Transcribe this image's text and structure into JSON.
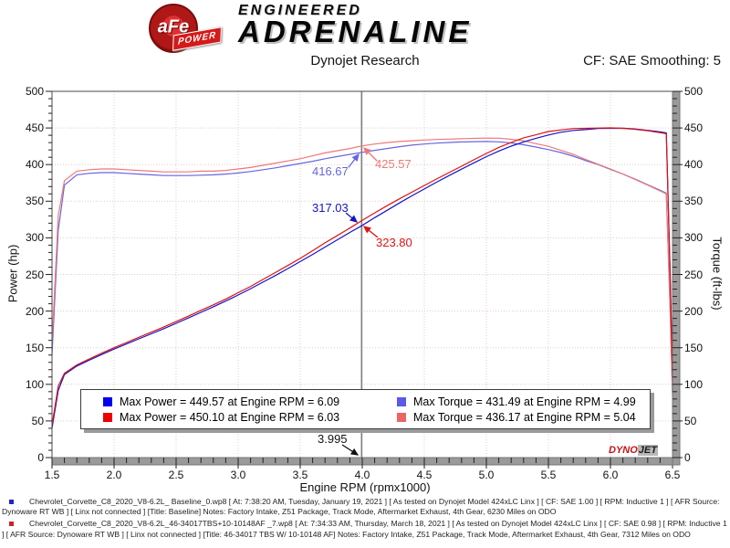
{
  "header": {
    "logo_circle": "aFe",
    "logo_banner": "POWER",
    "brand_line1": "ENGINEERED",
    "brand_line2": "ADRENALINE",
    "title": "Dynojet Research",
    "cf_label": "CF: SAE Smoothing: 5"
  },
  "colors": {
    "power_baseline": "#1414c8",
    "power_new": "#dd1212",
    "torque_baseline": "#6666e0",
    "torque_new": "#ee7878",
    "legend_power_baseline": "#0000ee",
    "legend_power_new": "#ee0000",
    "legend_torque_baseline": "#5a5ae6",
    "legend_torque_new": "#ee6464",
    "grid": "#e6caca",
    "cursor": "#808080",
    "axis_bar": "#9a9a9a",
    "plot_border": "#4a4a4a"
  },
  "chart_data": {
    "type": "line",
    "title": "Dynojet Research",
    "xlabel": "Engine RPM (rpmx1000)",
    "ylabel_left": "Power (hp)",
    "ylabel_right": "Torque (ft-lbs)",
    "xlim": [
      1.5,
      6.5
    ],
    "ylim_left": [
      0,
      500
    ],
    "ylim_right": [
      0,
      500
    ],
    "grid": true,
    "x_major_ticks": [
      1.5,
      2.0,
      2.5,
      3.0,
      3.5,
      4.0,
      4.5,
      5.0,
      5.5,
      6.0,
      6.5
    ],
    "y_major_ticks": [
      0,
      50,
      100,
      150,
      200,
      250,
      300,
      350,
      400,
      450,
      500
    ],
    "cursor_rpm": 3.995,
    "x": [
      1.5,
      1.55,
      1.6,
      1.7,
      1.8,
      1.9,
      2.0,
      2.1,
      2.2,
      2.3,
      2.4,
      2.5,
      2.6,
      2.7,
      2.8,
      2.9,
      3.0,
      3.1,
      3.2,
      3.3,
      3.4,
      3.5,
      3.6,
      3.7,
      3.8,
      3.9,
      4.0,
      4.1,
      4.2,
      4.3,
      4.4,
      4.5,
      4.6,
      4.7,
      4.8,
      4.9,
      5.0,
      5.1,
      5.2,
      5.3,
      5.4,
      5.5,
      5.6,
      5.7,
      5.8,
      5.9,
      6.0,
      6.1,
      6.2,
      6.3,
      6.4,
      6.45,
      6.48,
      6.5
    ],
    "series": [
      {
        "key": "torque_baseline",
        "name": "Torque Baseline",
        "axis": "right",
        "values": [
          140,
          310,
          372,
          386,
          388,
          389,
          389,
          388,
          387,
          386,
          385,
          385,
          385,
          385.5,
          386,
          387,
          388.5,
          390.5,
          393,
          395.5,
          398.5,
          401.5,
          404.5,
          408,
          411,
          414,
          416.7,
          419.5,
          422,
          424.5,
          426.5,
          428,
          429.3,
          430.2,
          430.9,
          431.3,
          431.5,
          431,
          429.5,
          427,
          424,
          420.5,
          416.5,
          411.5,
          405.5,
          400,
          393.5,
          387,
          380,
          372.5,
          365,
          361,
          210,
          90
        ]
      },
      {
        "key": "torque_new",
        "name": "Torque 46-34017 TBS W/ 10-10148 AF",
        "axis": "right",
        "values": [
          155,
          330,
          378,
          391,
          393,
          394,
          394,
          393,
          392,
          391,
          390,
          390,
          390,
          391,
          391,
          392,
          394,
          396,
          399,
          402,
          405,
          408,
          412,
          416,
          419,
          422,
          425.6,
          428,
          430,
          431.5,
          432.5,
          433.5,
          434.3,
          434.8,
          435.3,
          435.8,
          436.1,
          436,
          434.5,
          432.5,
          428.5,
          425,
          419.5,
          414,
          407,
          400.5,
          394,
          387,
          379.5,
          372,
          364,
          360,
          205,
          85
        ]
      },
      {
        "key": "power_baseline",
        "name": "Power Baseline",
        "axis": "left",
        "values": [
          40.0,
          91.5,
          113.3,
          124.9,
          133.0,
          140.7,
          148.1,
          155.1,
          162.1,
          169.0,
          175.9,
          183.3,
          190.6,
          198.2,
          205.8,
          213.7,
          221.9,
          230.5,
          239.5,
          248.5,
          258.0,
          267.6,
          277.3,
          287.4,
          297.4,
          307.4,
          317.0,
          327.5,
          337.5,
          347.6,
          357.3,
          366.7,
          376.0,
          385.0,
          393.8,
          402.4,
          410.8,
          418.5,
          425.2,
          430.9,
          435.9,
          440.4,
          444.1,
          446.6,
          447.8,
          449.4,
          449.5,
          449.6,
          448.6,
          446.8,
          444.8,
          443.3,
          259.1,
          111.4
        ]
      },
      {
        "key": "power_new",
        "name": "Power 46-34017 TBS W/ 10-10148 AF",
        "axis": "left",
        "values": [
          44.3,
          97.4,
          115.2,
          126.6,
          134.7,
          142.5,
          150.0,
          157.1,
          164.2,
          171.2,
          178.2,
          185.6,
          193.1,
          201.0,
          208.5,
          216.5,
          225.1,
          233.7,
          243.1,
          252.6,
          262.2,
          271.9,
          282.4,
          293.1,
          303.2,
          313.4,
          323.8,
          334.1,
          343.9,
          353.3,
          362.3,
          371.4,
          380.4,
          389.1,
          397.8,
          406.6,
          415.2,
          423.4,
          430.2,
          436.5,
          440.6,
          445.1,
          447.3,
          449.3,
          449.5,
          449.9,
          450.1,
          449.5,
          448.0,
          446.2,
          443.5,
          442.1,
          252.9,
          105.2
        ]
      }
    ],
    "legend_position": "bottom-inside"
  },
  "legend": {
    "entries": [
      {
        "key": "power_baseline",
        "swatch": "legend_power_baseline",
        "label": "Max Power = 449.57 at Engine RPM = 6.09"
      },
      {
        "key": "torque_baseline",
        "swatch": "legend_torque_baseline",
        "label": "Max Torque = 431.49 at Engine RPM = 4.99"
      },
      {
        "key": "power_new",
        "swatch": "legend_power_new",
        "label": "Max Power = 450.10 at Engine RPM = 6.03"
      },
      {
        "key": "torque_new",
        "swatch": "legend_torque_new",
        "label": "Max Torque = 436.17 at Engine RPM = 5.04"
      }
    ]
  },
  "annotations": [
    {
      "id": "torque-baseline-value",
      "text": "416.67",
      "color_key": "torque_baseline"
    },
    {
      "id": "torque-new-value",
      "text": "425.57",
      "color_key": "torque_new"
    },
    {
      "id": "power-baseline-value",
      "text": "317.03",
      "color_key": "power_baseline"
    },
    {
      "id": "power-new-value",
      "text": "323.80",
      "color_key": "power_new"
    },
    {
      "id": "cursor-rpm-value",
      "text": "3.995",
      "color_key": "cursor_text"
    }
  ],
  "watermark": {
    "part1": "DYNO",
    "part2": "JET"
  },
  "footnotes": [
    {
      "bullet_color": "#2424cc",
      "text": "Chevrolet_Corvette_C8_2020_V8-6.2L_ Baseline_0.wp8 [ At: 7:38:20 AM, Tuesday, January 19, 2021 ] [ As tested on Dynojet Model 424xLC Linx ] [ CF: SAE 1.00 ] [ RPM: Inductive 1 ] [ AFR Source: Dynoware RT WB ] [ Linx not connected ] [Title: Baseline]  Notes: Factory Intake, Z51 Package, Track Mode, Aftermarket Exhaust, 4th Gear, 6230 Miles on ODO"
    },
    {
      "bullet_color": "#cc2424",
      "text": "Chevrolet_Corvette_C8_2020_V8-6.2L_46-34017TBS+10-10148AF _7.wp8 [ At: 7:34:33 AM, Thursday, March 18, 2021 ] [ As tested on Dynojet Model 424xLC Linx ] [ CF: SAE 0.98 ] [ RPM: Inductive 1 ] [ AFR Source: Dynoware RT WB ] [ Linx not connected ] [Title: 46-34017 TBS W/ 10-10148 AF]  Notes: Factory Intake, Z51 Package, Track Mode, Aftermarket Exhaust, 4th Gear, 7312 Miles on ODO"
    }
  ]
}
